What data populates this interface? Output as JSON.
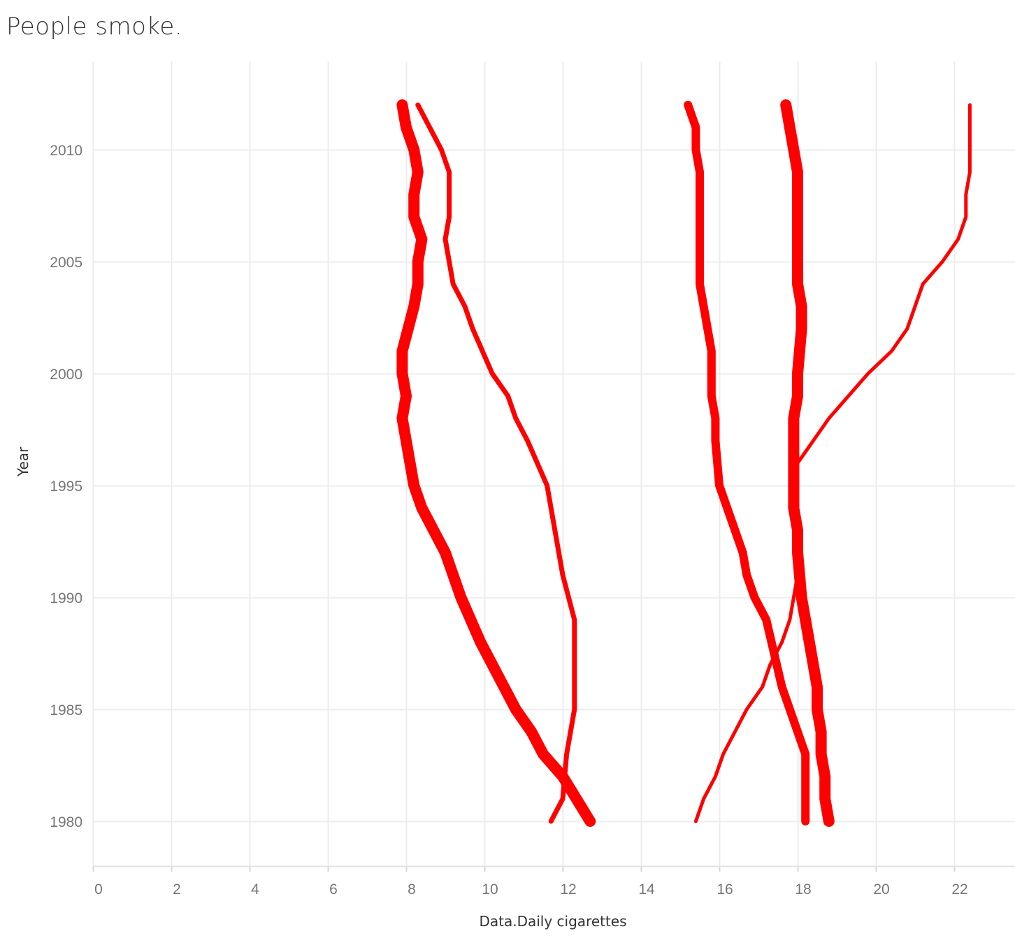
{
  "chart_data": {
    "type": "line",
    "title": "People smoke.",
    "xlabel": "Data.Daily cigarettes",
    "ylabel": "Year",
    "xlim": [
      0,
      23.3
    ],
    "ylim": [
      1978,
      2014
    ],
    "x_ticks": [
      0,
      2,
      4,
      6,
      8,
      10,
      12,
      14,
      16,
      18,
      20,
      22
    ],
    "y_ticks": [
      1980,
      1985,
      1990,
      1995,
      2000,
      2005,
      2010
    ],
    "grid": true,
    "line_color": "#ff0000",
    "series": [
      {
        "weight": 4,
        "points": [
          [
            12.7,
            1980
          ],
          [
            12.0,
            1982
          ],
          [
            11.5,
            1983
          ],
          [
            11.2,
            1984
          ],
          [
            10.8,
            1985
          ],
          [
            10.5,
            1986
          ],
          [
            9.9,
            1988
          ],
          [
            9.4,
            1990
          ],
          [
            9.0,
            1992
          ],
          [
            8.7,
            1993
          ],
          [
            8.4,
            1994
          ],
          [
            8.2,
            1995
          ],
          [
            8.1,
            1996
          ],
          [
            7.9,
            1998
          ],
          [
            8.0,
            1999
          ],
          [
            7.9,
            2000
          ],
          [
            7.9,
            2001
          ],
          [
            8.2,
            2003
          ],
          [
            8.3,
            2004
          ],
          [
            8.3,
            2005
          ],
          [
            8.4,
            2006
          ],
          [
            8.2,
            2007
          ],
          [
            8.2,
            2008
          ],
          [
            8.3,
            2009
          ],
          [
            8.2,
            2010
          ],
          [
            8.0,
            2011
          ],
          [
            7.9,
            2012
          ]
        ]
      },
      {
        "weight": 2,
        "points": [
          [
            11.7,
            1980
          ],
          [
            12.0,
            1981
          ],
          [
            12.1,
            1983
          ],
          [
            12.3,
            1985
          ],
          [
            12.3,
            1986
          ],
          [
            12.3,
            1987
          ],
          [
            12.3,
            1988
          ],
          [
            12.3,
            1989
          ],
          [
            12.0,
            1991
          ],
          [
            11.8,
            1993
          ],
          [
            11.7,
            1994
          ],
          [
            11.6,
            1995
          ],
          [
            11.1,
            1997
          ],
          [
            10.8,
            1998
          ],
          [
            10.6,
            1999
          ],
          [
            10.2,
            2000
          ],
          [
            9.7,
            2002
          ],
          [
            9.5,
            2003
          ],
          [
            9.2,
            2004
          ],
          [
            9.1,
            2005
          ],
          [
            9.0,
            2006
          ],
          [
            9.1,
            2007
          ],
          [
            9.1,
            2008
          ],
          [
            9.1,
            2009
          ],
          [
            8.9,
            2010
          ],
          [
            8.6,
            2011
          ],
          [
            8.3,
            2012
          ]
        ]
      },
      {
        "weight": 3,
        "points": [
          [
            18.2,
            1980
          ],
          [
            18.2,
            1983
          ],
          [
            17.6,
            1986
          ],
          [
            17.2,
            1989
          ],
          [
            16.9,
            1990
          ],
          [
            16.7,
            1991
          ],
          [
            16.6,
            1992
          ],
          [
            16.4,
            1993
          ],
          [
            16.2,
            1994
          ],
          [
            16.0,
            1995
          ],
          [
            15.9,
            1997
          ],
          [
            15.9,
            1998
          ],
          [
            15.8,
            1999
          ],
          [
            15.8,
            2000
          ],
          [
            15.8,
            2001
          ],
          [
            15.6,
            2003
          ],
          [
            15.5,
            2004
          ],
          [
            15.5,
            2005
          ],
          [
            15.5,
            2007
          ],
          [
            15.5,
            2009
          ],
          [
            15.4,
            2010
          ],
          [
            15.4,
            2011
          ],
          [
            15.2,
            2012
          ]
        ]
      },
      {
        "weight": 4,
        "points": [
          [
            18.8,
            1980
          ],
          [
            18.7,
            1981
          ],
          [
            18.7,
            1982
          ],
          [
            18.6,
            1983
          ],
          [
            18.6,
            1984
          ],
          [
            18.5,
            1985
          ],
          [
            18.5,
            1986
          ],
          [
            18.3,
            1988
          ],
          [
            18.1,
            1990
          ],
          [
            18.0,
            1992
          ],
          [
            18.0,
            1993
          ],
          [
            17.9,
            1994
          ],
          [
            17.9,
            1995
          ],
          [
            17.9,
            1996
          ],
          [
            17.9,
            1998
          ],
          [
            18.0,
            1999
          ],
          [
            18.0,
            2000
          ],
          [
            18.1,
            2002
          ],
          [
            18.1,
            2003
          ],
          [
            18.0,
            2004
          ],
          [
            18.0,
            2005
          ],
          [
            18.0,
            2007
          ],
          [
            18.0,
            2009
          ],
          [
            17.9,
            2010
          ],
          [
            17.8,
            2011
          ],
          [
            17.7,
            2012
          ]
        ]
      },
      {
        "weight": 1,
        "points": [
          [
            15.4,
            1980
          ],
          [
            15.6,
            1981
          ],
          [
            15.9,
            1982
          ],
          [
            16.1,
            1983
          ],
          [
            16.4,
            1984
          ],
          [
            16.7,
            1985
          ],
          [
            17.1,
            1986
          ],
          [
            17.3,
            1987
          ],
          [
            17.6,
            1988
          ],
          [
            17.8,
            1989
          ],
          [
            17.9,
            1990
          ],
          [
            18.0,
            1991
          ],
          [
            18.0,
            1993
          ],
          [
            18.0,
            1995
          ],
          [
            18.0,
            1996
          ],
          [
            18.4,
            1997
          ],
          [
            18.8,
            1998
          ],
          [
            19.3,
            1999
          ],
          [
            19.8,
            2000
          ],
          [
            20.4,
            2001
          ],
          [
            20.8,
            2002
          ],
          [
            21.0,
            2003
          ],
          [
            21.2,
            2004
          ],
          [
            21.7,
            2005
          ],
          [
            22.1,
            2006
          ],
          [
            22.3,
            2007
          ],
          [
            22.3,
            2008
          ],
          [
            22.4,
            2009
          ],
          [
            22.4,
            2010
          ],
          [
            22.4,
            2012
          ]
        ]
      }
    ]
  }
}
